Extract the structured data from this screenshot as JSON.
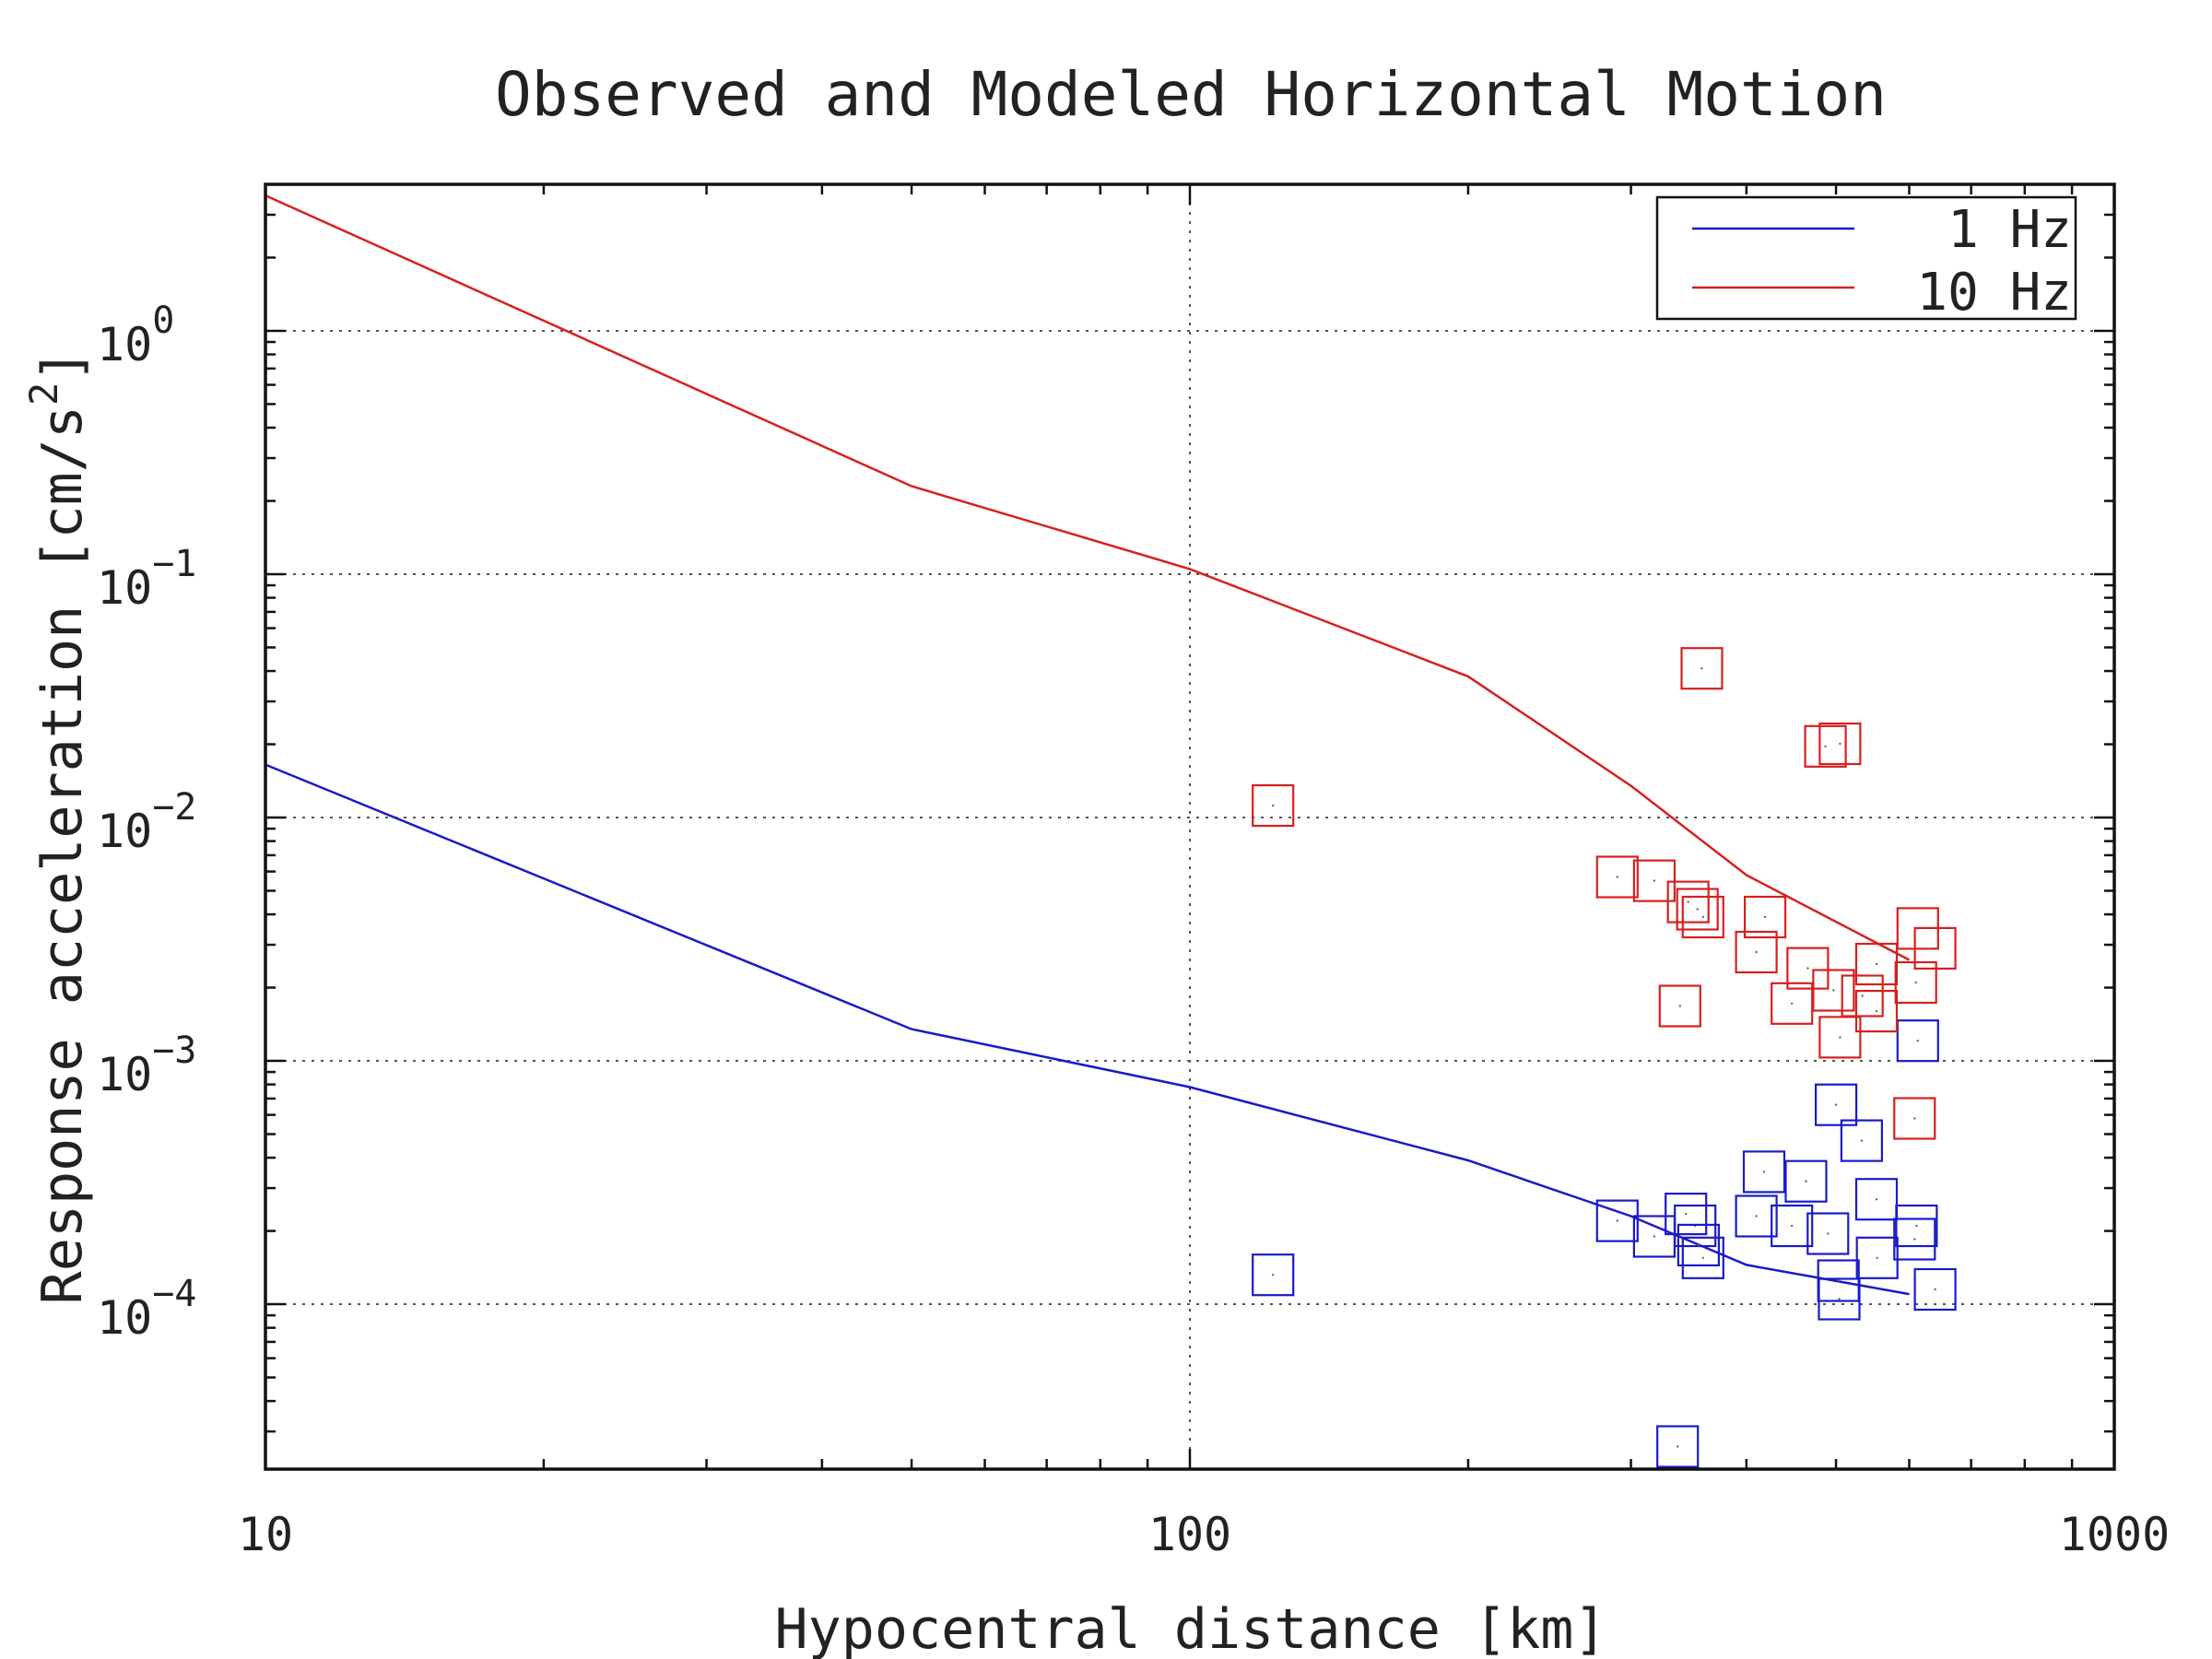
{
  "chart_data": {
    "type": "scatter",
    "title": "Observed and Modeled Horizontal Motion",
    "xlabel": "Hypocentral distance [km]",
    "ylabel_text": "Response acceleration [cm/s",
    "ylabel_sup": "2",
    "ylabel_close": "]",
    "x_scale": "log",
    "y_scale": "log",
    "xlim": [
      10,
      1000
    ],
    "ylim": [
      2.1e-05,
      4.0
    ],
    "x_ticks": [
      {
        "value": 10,
        "label": "10"
      },
      {
        "value": 100,
        "label": "100"
      },
      {
        "value": 1000,
        "label": "1000"
      }
    ],
    "y_ticks": [
      {
        "value": 1,
        "base": "10",
        "exp": "0"
      },
      {
        "value": 0.1,
        "base": "10",
        "exp": "−1"
      },
      {
        "value": 0.01,
        "base": "10",
        "exp": "−2"
      },
      {
        "value": 0.001,
        "base": "10",
        "exp": "−3"
      },
      {
        "value": 0.0001,
        "base": "10",
        "exp": "−4"
      }
    ],
    "grid": true,
    "legend_position": "top-right",
    "series": [
      {
        "name": "1 Hz",
        "color": "#1a1ac8",
        "line": [
          [
            10,
            0.0165
          ],
          [
            50,
            0.00135
          ],
          [
            100,
            0.00078
          ],
          [
            200,
            0.00039
          ],
          [
            300,
            0.00023
          ],
          [
            400,
            0.000145
          ],
          [
            600,
            0.00011
          ]
        ],
        "points": [
          [
            123,
            0.000132
          ],
          [
            290,
            0.00022
          ],
          [
            318,
            0.00019
          ],
          [
            344,
            0.000235
          ],
          [
            352,
            0.00021
          ],
          [
            355,
            0.000175
          ],
          [
            359,
            0.000155
          ],
          [
            337,
            2.6e-05
          ],
          [
            410,
            0.00023
          ],
          [
            418,
            0.00035
          ],
          [
            448,
            0.00021
          ],
          [
            464,
            0.00032
          ],
          [
            490,
            0.000195
          ],
          [
            500,
            0.00066
          ],
          [
            503,
            0.000125
          ],
          [
            504,
            0.000105
          ],
          [
            533,
            0.00047
          ],
          [
            553,
            0.00027
          ],
          [
            554,
            0.000155
          ],
          [
            608,
            0.000185
          ],
          [
            611,
            0.00021
          ],
          [
            613,
            0.00121
          ],
          [
            640,
            0.000115
          ]
        ]
      },
      {
        "name": "10 Hz",
        "color": "#d62020",
        "line": [
          [
            10,
            3.6
          ],
          [
            50,
            0.23
          ],
          [
            100,
            0.105
          ],
          [
            200,
            0.038
          ],
          [
            300,
            0.0135
          ],
          [
            400,
            0.0058
          ],
          [
            600,
            0.0026
          ]
        ],
        "points": [
          [
            123,
            0.0112
          ],
          [
            290,
            0.0057
          ],
          [
            318,
            0.0055
          ],
          [
            339,
            0.00168
          ],
          [
            346,
            0.0045
          ],
          [
            354,
            0.0042
          ],
          [
            359,
            0.0039
          ],
          [
            358,
            0.041
          ],
          [
            410,
            0.0028
          ],
          [
            419,
            0.0039
          ],
          [
            448,
            0.00172
          ],
          [
            466,
            0.0024
          ],
          [
            487,
            0.0196
          ],
          [
            505,
            0.0201
          ],
          [
            497,
            0.00195
          ],
          [
            505,
            0.00125
          ],
          [
            534,
            0.00185
          ],
          [
            553,
            0.0016
          ],
          [
            553,
            0.0025
          ],
          [
            608,
            0.00058
          ],
          [
            610,
            0.0021
          ],
          [
            613,
            0.0035
          ],
          [
            640,
            0.0029
          ]
        ]
      }
    ]
  }
}
